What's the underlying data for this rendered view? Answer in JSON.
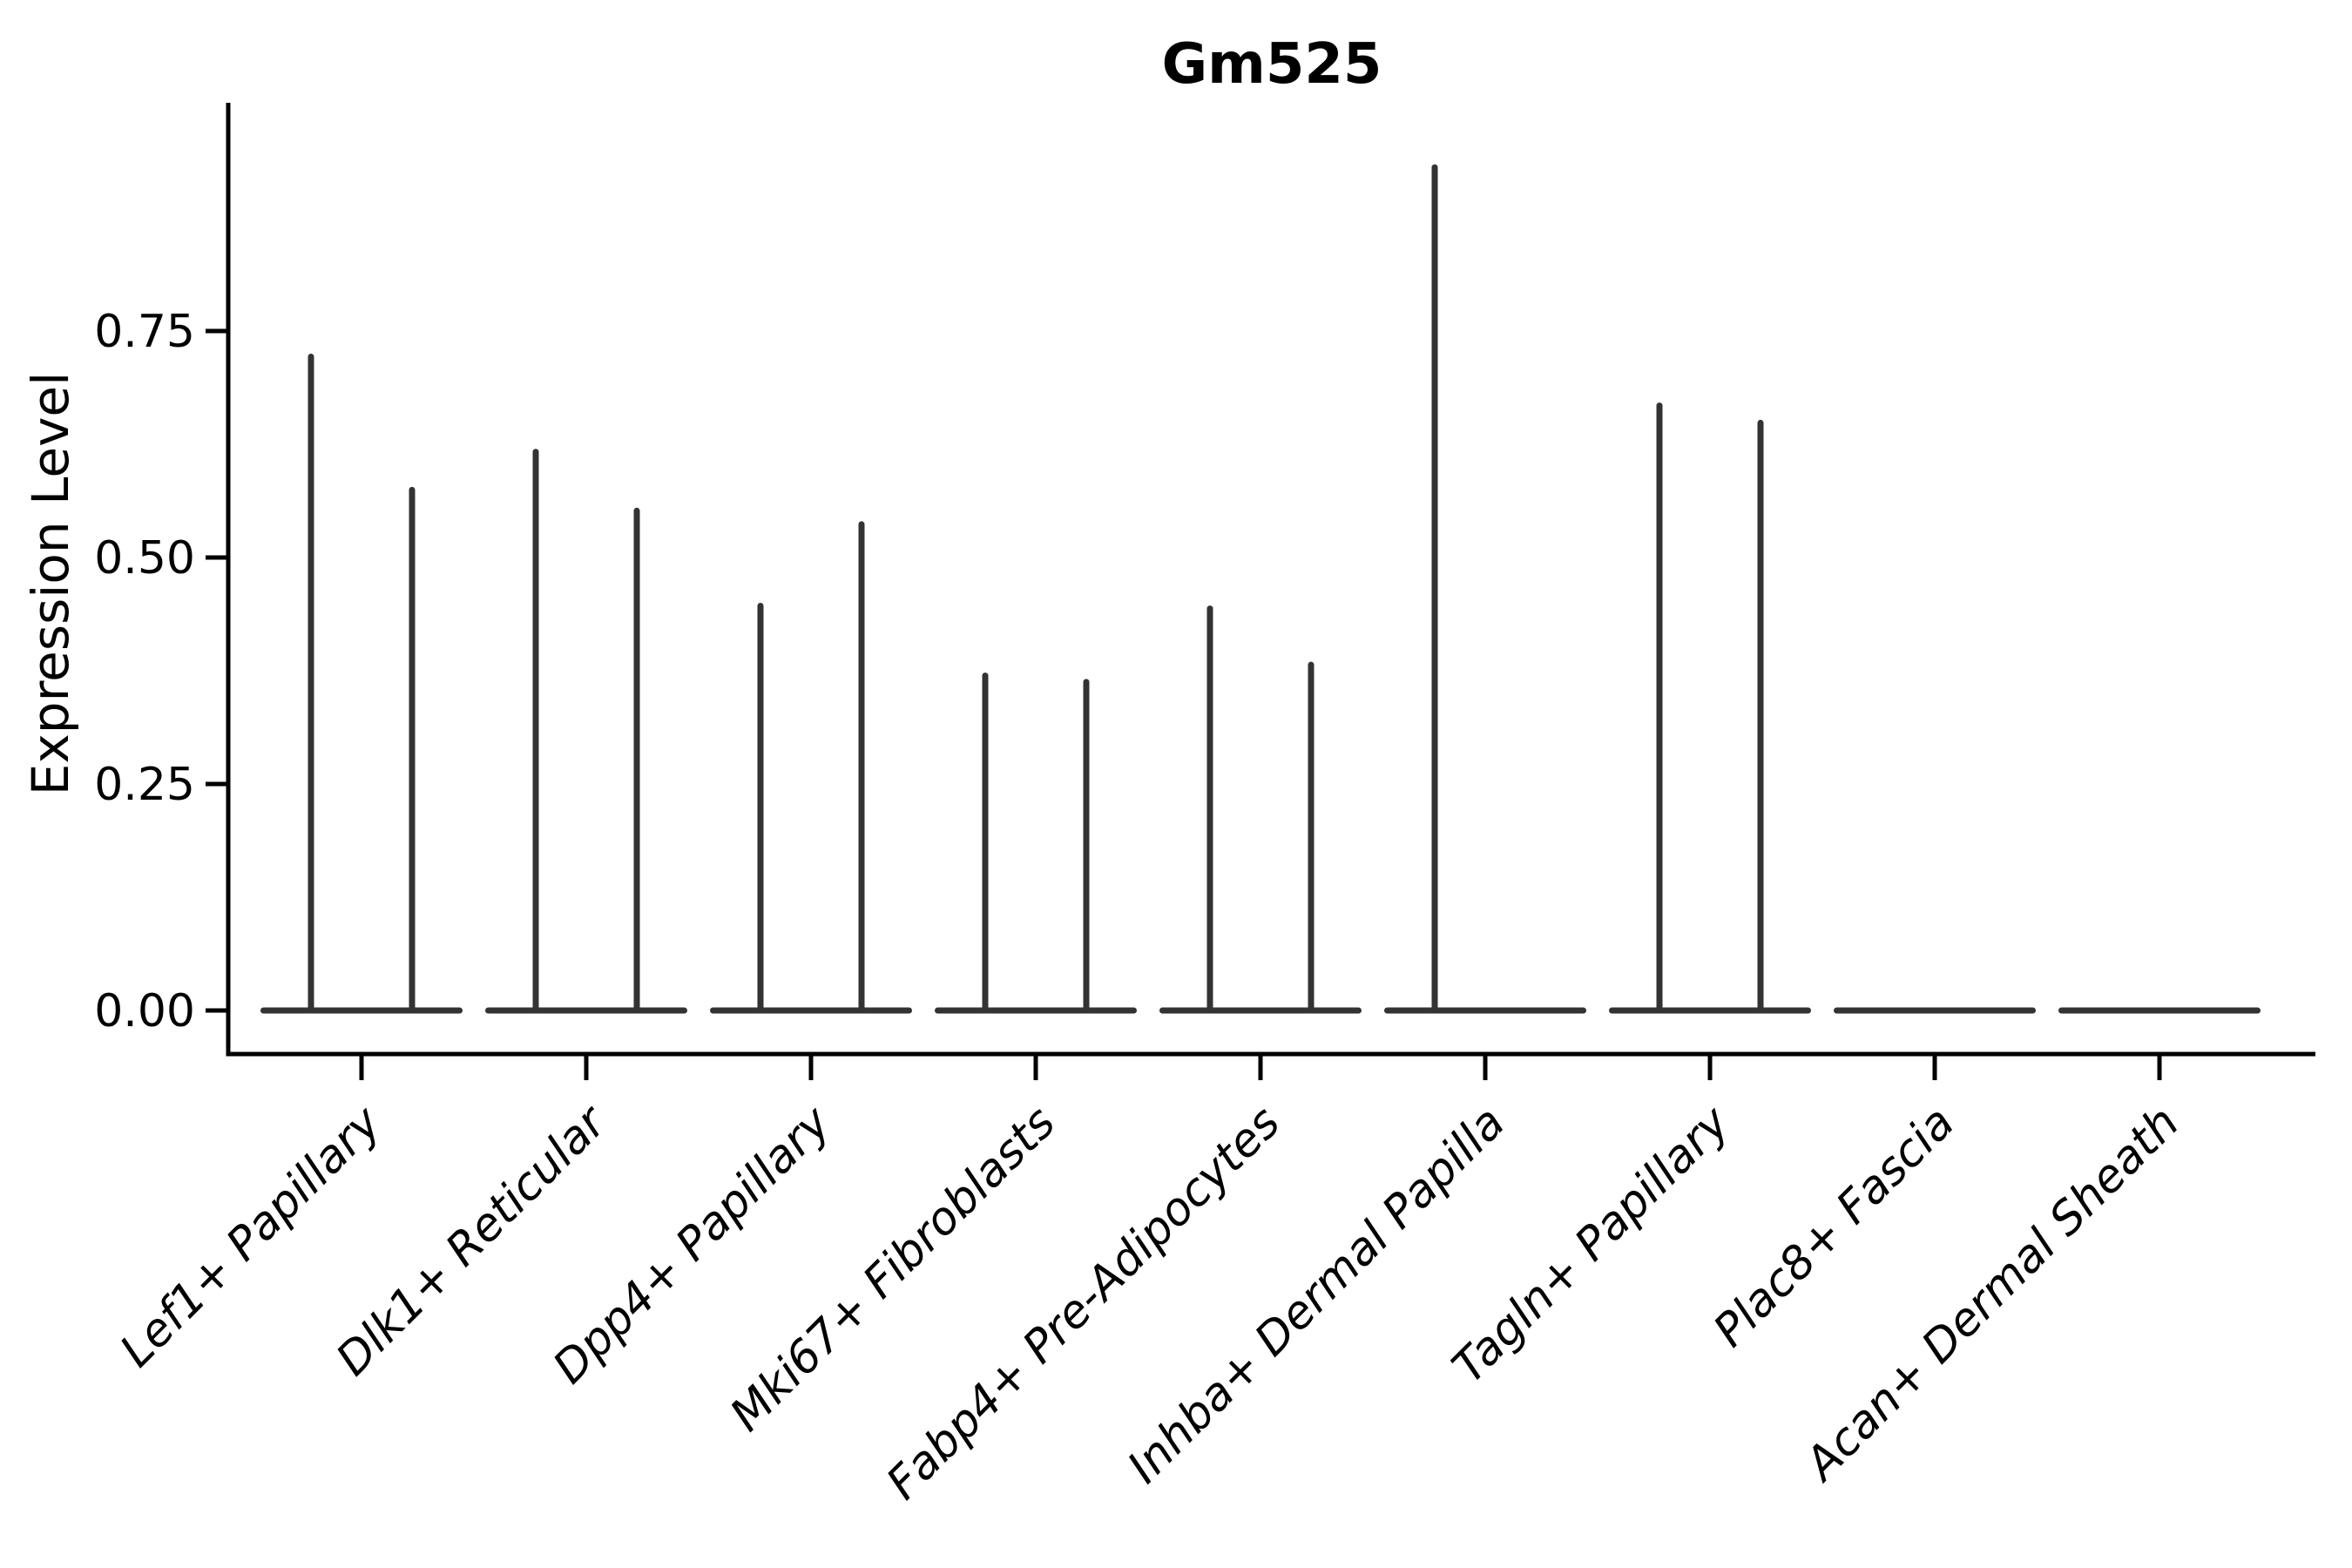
{
  "chart_data": {
    "type": "violin",
    "title": "Gm525",
    "ylabel": "Expression Level",
    "xlabel": "",
    "legend_position": "none",
    "grid": false,
    "background": "#ffffff",
    "violin_color": "#333333",
    "axis_color": "#000000",
    "ylim": [
      -0.048,
      1.0
    ],
    "yticks": [
      {
        "value": 0.0,
        "label": "0.00"
      },
      {
        "value": 0.25,
        "label": "0.25"
      },
      {
        "value": 0.5,
        "label": "0.50"
      },
      {
        "value": 0.75,
        "label": "0.75"
      }
    ],
    "categories": [
      "Lef1+ Papillary",
      "Dlk1+ Reticular",
      "Dpp4+ Papillary",
      "Mki67+ Fibroblasts",
      "Fabp4+ Pre-Adipocytes",
      "Inhba+ Dermal Papilla",
      "Tagln+ Papillary",
      "Plac8+ Fascia",
      "Acan+ Dermal Sheath"
    ],
    "violin_pairs": [
      {
        "category": "Lef1+ Papillary",
        "spike_maxima": [
          0.725,
          0.578
        ]
      },
      {
        "category": "Dlk1+ Reticular",
        "spike_maxima": [
          0.62,
          0.555
        ]
      },
      {
        "category": "Dpp4+ Papillary",
        "spike_maxima": [
          0.45,
          0.54
        ]
      },
      {
        "category": "Mki67+ Fibroblasts",
        "spike_maxima": [
          0.373,
          0.366
        ]
      },
      {
        "category": "Fabp4+ Pre-Adipocytes",
        "spike_maxima": [
          0.447,
          0.385
        ]
      },
      {
        "category": "Inhba+ Dermal Papilla",
        "spike_maxima": [
          0.934,
          0
        ]
      },
      {
        "category": "Tagln+ Papillary",
        "spike_maxima": [
          0.671,
          0.652
        ]
      },
      {
        "category": "Plac8+ Fascia",
        "spike_maxima": [
          0,
          0
        ]
      },
      {
        "category": "Acan+ Dermal Sheath",
        "spike_maxima": [
          0,
          0
        ]
      }
    ],
    "shape_note": "Each category shows two side-by-side violins collapsed to a flat line at 0 with a thin vertical spike reaching the group's maximum expression; Plac8+ Fascia and Acan+ Dermal Sheath (and the right violin of Inhba+ Dermal Papilla) are flat lines with no spike."
  }
}
